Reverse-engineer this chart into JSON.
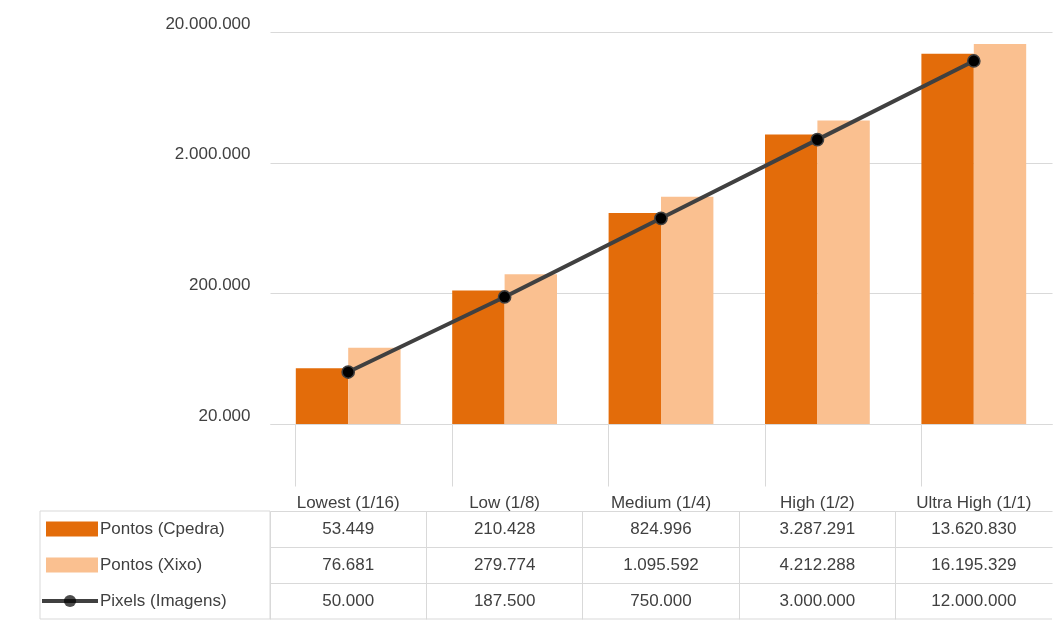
{
  "chart_data": {
    "type": "bar",
    "categories": [
      "Lowest (1/16)",
      "Low (1/8)",
      "Medium (1/4)",
      "High (1/2)",
      "Ultra High (1/1)"
    ],
    "series": [
      {
        "name": "Pontos (Cpedra)",
        "color": "#e36c0a",
        "values": [
          53449,
          210428,
          824996,
          3287291,
          13620830
        ],
        "value_labels": [
          "53.449",
          "210.428",
          "824.996",
          "3.287.291",
          "13.620.830"
        ]
      },
      {
        "name": "Pontos (Xixo)",
        "color": "#fac090",
        "values": [
          76681,
          279774,
          1095592,
          4212288,
          16195329
        ],
        "value_labels": [
          "76.681",
          "279.774",
          "1.095.592",
          "4.212.288",
          "16.195.329"
        ]
      },
      {
        "name": "Pixels (Imagens)",
        "type": "line",
        "color": "#404040",
        "marker": "circle",
        "values": [
          50000,
          187500,
          750000,
          3000000,
          12000000
        ],
        "value_labels": [
          "50.000",
          "187.500",
          "750.000",
          "3.000.000",
          "12.000.000"
        ]
      }
    ],
    "log": true,
    "ylim": [
      20000,
      20000000
    ],
    "yticks": [
      {
        "value": 20000,
        "label": "20.000"
      },
      {
        "value": 200000,
        "label": "200.000"
      },
      {
        "value": 2000000,
        "label": "2.000.000"
      },
      {
        "value": 20000000,
        "label": "20.000.000"
      }
    ],
    "grid": "y",
    "legend": "bottom"
  }
}
